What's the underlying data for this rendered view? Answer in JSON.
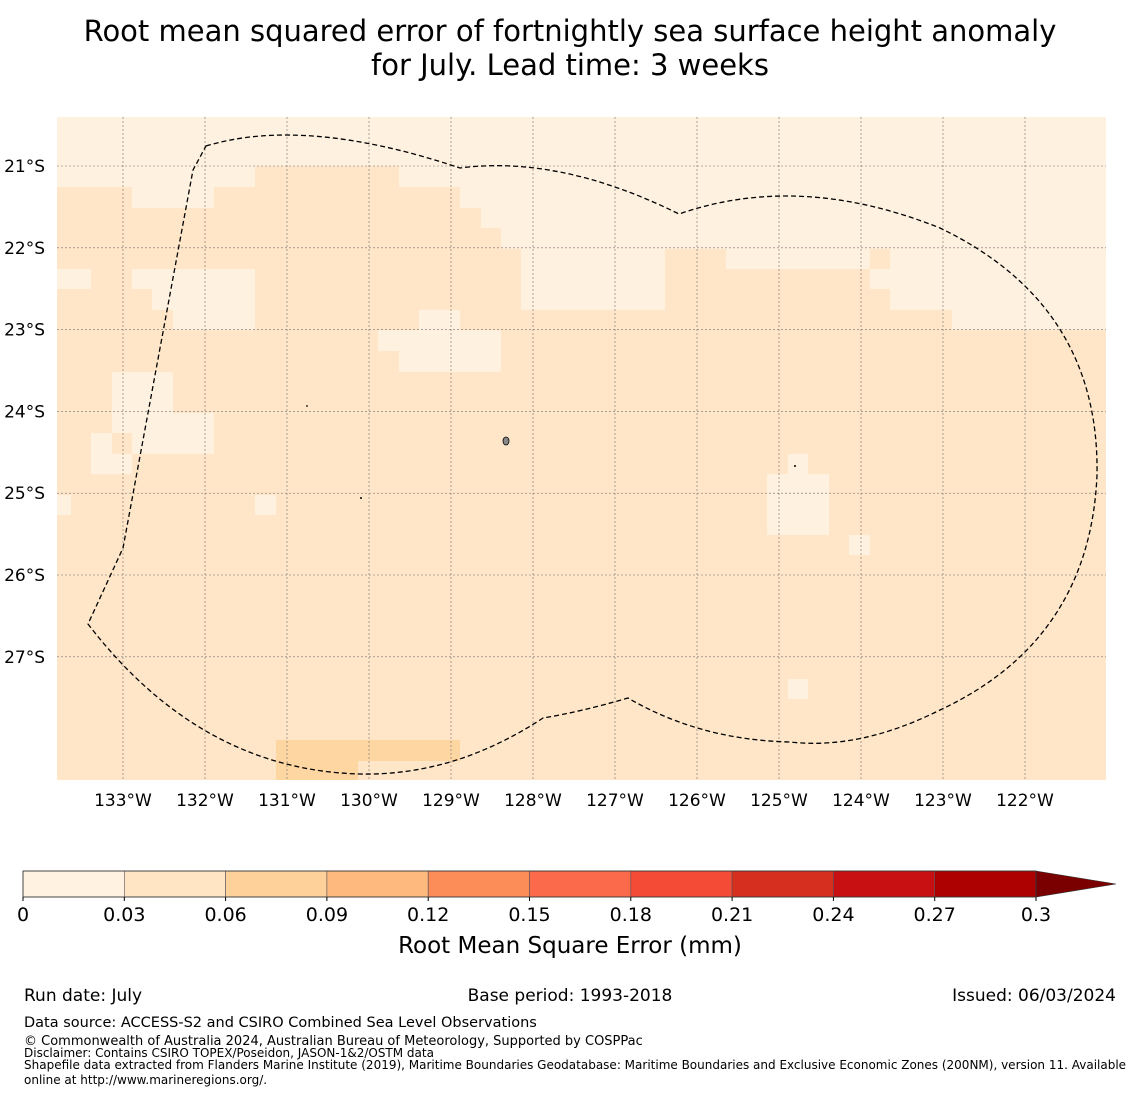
{
  "title_line1": "Root mean squared error of fortnightly sea surface height anomaly",
  "title_line2": "for July. Lead time: 3 weeks",
  "map": {
    "lat_labels": [
      "21°S",
      "22°S",
      "23°S",
      "24°S",
      "25°S",
      "26°S",
      "27°S"
    ],
    "lon_labels": [
      "133°W",
      "132°W",
      "131°W",
      "130°W",
      "129°W",
      "128°W",
      "127°W",
      "126°W",
      "125°W",
      "124°W",
      "123°W",
      "122°W"
    ],
    "field_levels": [
      "0-0.03",
      "0.03-0.06",
      "0.06-0.09"
    ]
  },
  "colorbar": {
    "tick_labels": [
      "0",
      "0.03",
      "0.06",
      "0.09",
      "0.12",
      "0.15",
      "0.18",
      "0.21",
      "0.24",
      "0.27",
      "0.3"
    ],
    "colors": [
      "#fff2e0",
      "#ffe5c4",
      "#fed19a",
      "#fdb97e",
      "#fc8d59",
      "#fb6a4a",
      "#f44b37",
      "#d72f1f",
      "#c80f12",
      "#ad0000"
    ],
    "extend_color": "#7a0000",
    "label": "Root Mean Square Error (mm)"
  },
  "footer": {
    "run_date": "Run date: July",
    "base_period": "Base period: 1993-2018",
    "issued": "Issued: 06/03/2024",
    "data_source": "Data source: ACCESS-S2 and CSIRO Combined Sea Level Observations",
    "copyright": "© Commonwealth of Australia 2024, Australian Bureau of Meteorology, Supported by COSPPac",
    "disclaimer": "Disclaimer: Contains CSIRO TOPEX/Poseidon, JASON-1&2/OSTM data",
    "shapefile": "Shapefile data extracted from Flanders Marine Institute (2019), Maritime Boundaries Geodatabase: Maritime Boundaries and Exclusive Economic Zones (200NM), version 11. Available online at http://www.marineregions.org/."
  }
}
